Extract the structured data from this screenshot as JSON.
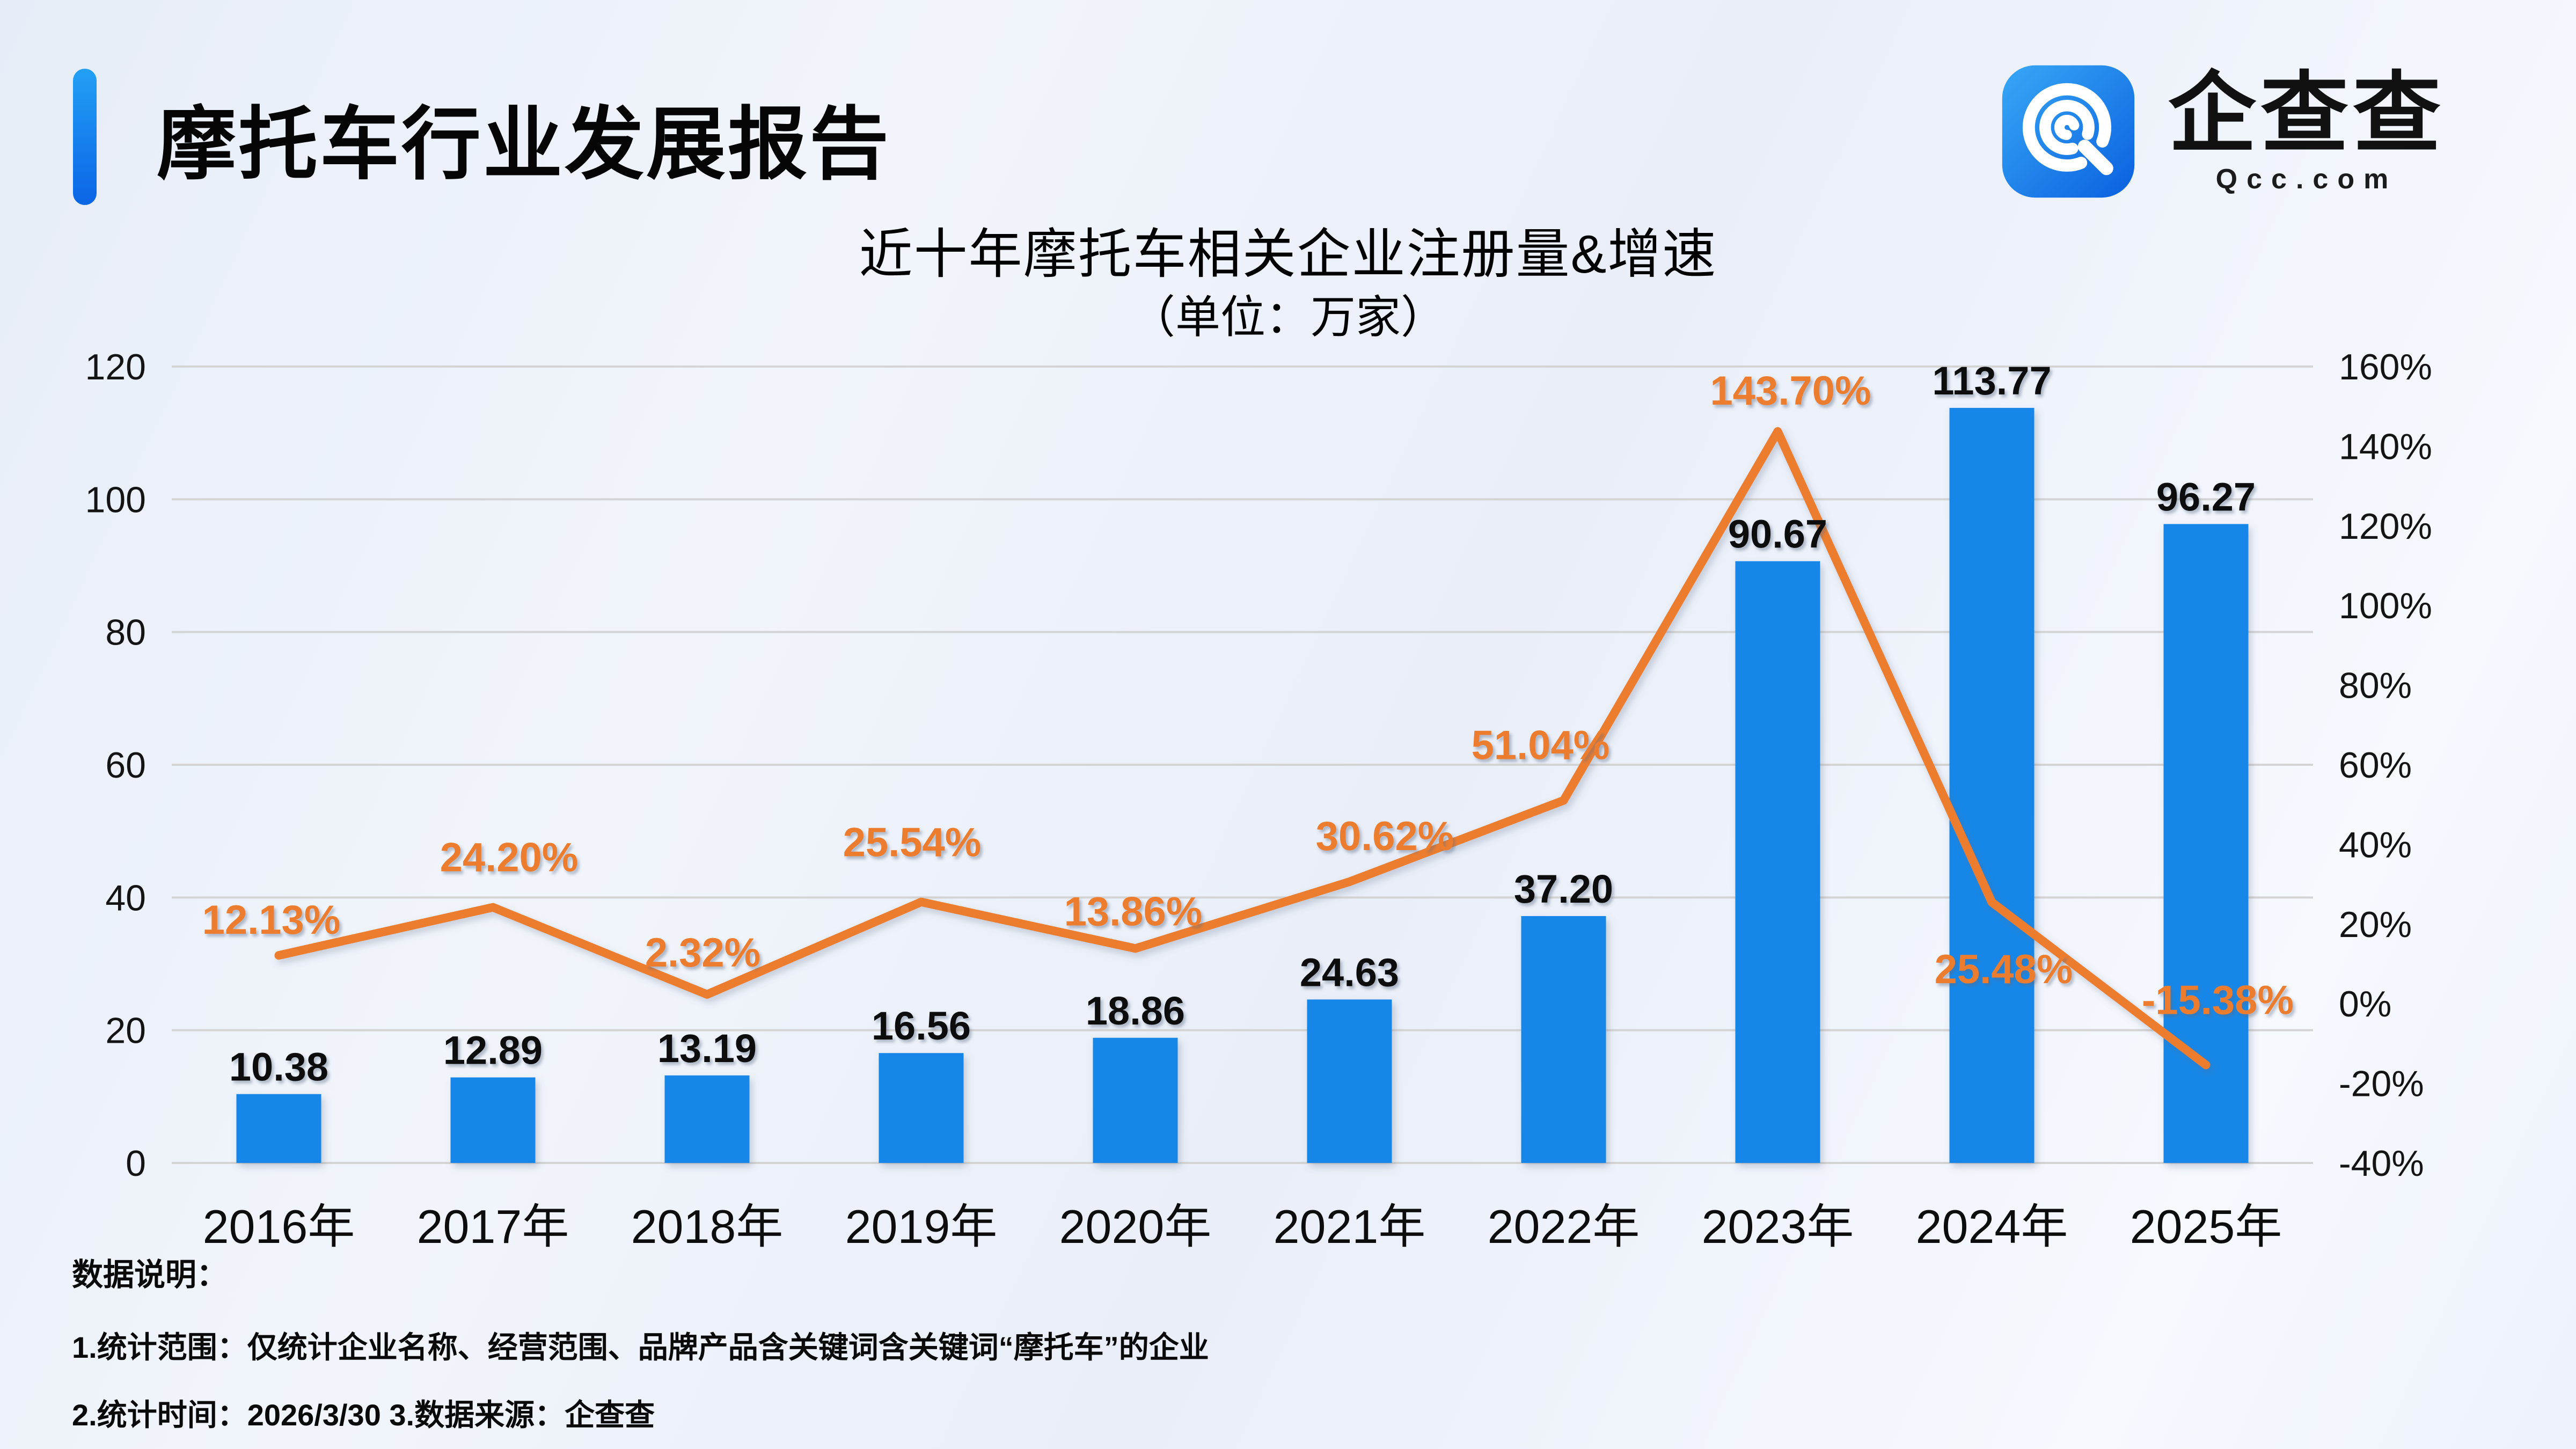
{
  "header": {
    "title": "摩托车行业发展报告",
    "logo": {
      "name": "企查查",
      "domain": "Qcc.com"
    }
  },
  "chart": {
    "title": "近十年摩托车相关企业注册量&增速",
    "subtitle": "（单位：万家）"
  },
  "chart_data": {
    "type": "bar",
    "categories": [
      "2016年",
      "2017年",
      "2018年",
      "2019年",
      "2020年",
      "2021年",
      "2022年",
      "2023年",
      "2024年",
      "2025年"
    ],
    "series": [
      {
        "name": "注册量",
        "type": "bar",
        "axis": "left",
        "values": [
          10.38,
          12.89,
          13.19,
          16.56,
          18.86,
          24.63,
          37.2,
          90.67,
          113.77,
          96.27
        ],
        "labels": [
          "10.38",
          "12.89",
          "13.19",
          "16.56",
          "18.86",
          "24.63",
          "37.20",
          "90.67",
          "113.77",
          "96.27"
        ],
        "color": "#1787E8"
      },
      {
        "name": "增速",
        "type": "line",
        "axis": "right",
        "values": [
          12.13,
          24.2,
          2.32,
          25.54,
          13.86,
          30.62,
          51.04,
          143.7,
          25.48,
          -15.38
        ],
        "labels": [
          "12.13%",
          "24.20%",
          "2.32%",
          "25.54%",
          "13.86%",
          "30.62%",
          "51.04%",
          "143.70%",
          "25.48%",
          "-15.38%"
        ],
        "color": "#ED7D2F"
      }
    ],
    "left_axis": {
      "min": 0,
      "max": 120,
      "step": 20,
      "ticks": [
        "120",
        "100",
        "80",
        "60",
        "40",
        "20",
        "0"
      ]
    },
    "right_axis": {
      "min": -40,
      "max": 160,
      "step": 20,
      "ticks": [
        "160%",
        "140%",
        "120%",
        "100%",
        "80%",
        "60%",
        "40%",
        "20%",
        "0%",
        "-20%",
        "-40%"
      ]
    },
    "grid": true,
    "legend": "none",
    "title": "近十年摩托车相关企业注册量&增速",
    "subtitle": "（单位：万家）"
  },
  "notes": {
    "heading": "数据说明：",
    "line1": "1.统计范围：仅统计企业名称、经营范围、品牌产品含关键词含关键词“摩托车”的企业",
    "line2": "2.统计时间：2026/3/30  3.数据来源：企查查"
  },
  "colors": {
    "bar": "#1787E8",
    "line": "#ED7D2F",
    "accent_top": "#23A0F5",
    "accent_bottom": "#0B65E6",
    "gridline": "#D4D4D4",
    "background": "#EDF1FA"
  }
}
